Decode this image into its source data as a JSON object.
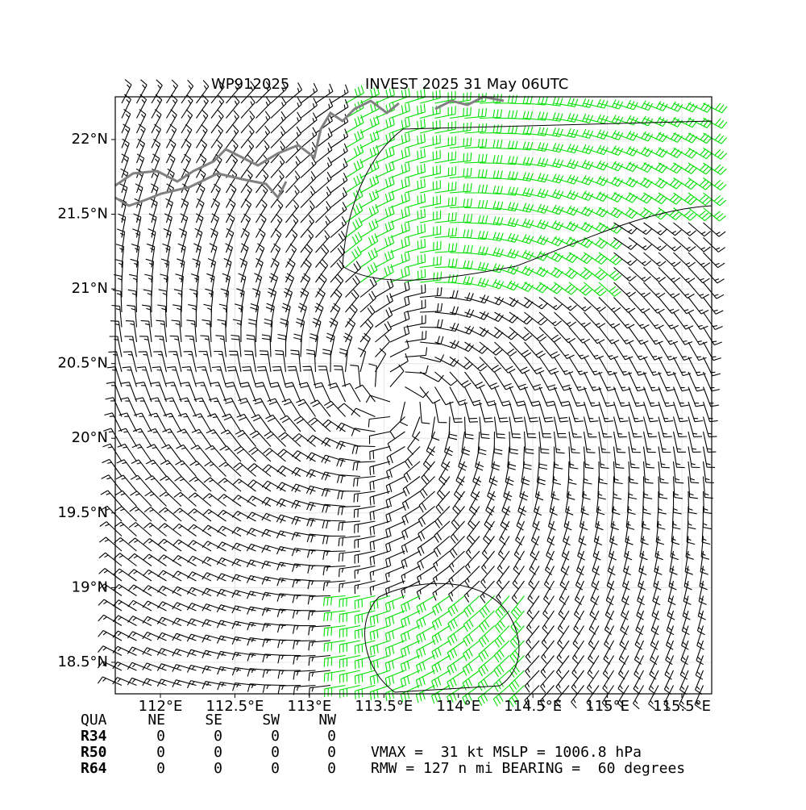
{
  "title_left": "WP912025",
  "title_right": "INVEST 2025 31 May 06UTC",
  "map": {
    "xlim": [
      111.697,
      115.7
    ],
    "ylim": [
      18.289,
      22.286
    ],
    "xticks": [
      {
        "value": 112,
        "label": "112°E"
      },
      {
        "value": 112.5,
        "label": "112.5°E"
      },
      {
        "value": 113,
        "label": "113°E"
      },
      {
        "value": 113.5,
        "label": "113.5°E"
      },
      {
        "value": 114,
        "label": "114°E"
      },
      {
        "value": 114.5,
        "label": "114.5°E"
      },
      {
        "value": 115,
        "label": "115°E"
      },
      {
        "value": 115.5,
        "label": "115.5°E"
      }
    ],
    "yticks": [
      {
        "value": 22,
        "label": "22°N"
      },
      {
        "value": 21.5,
        "label": "21.5°N"
      },
      {
        "value": 21,
        "label": "21°N"
      },
      {
        "value": 20.5,
        "label": "20.5°N"
      },
      {
        "value": 20,
        "label": "20°N"
      },
      {
        "value": 19.5,
        "label": "19.5°N"
      },
      {
        "value": 19,
        "label": "19°N"
      },
      {
        "value": 18.5,
        "label": "18.5°N"
      }
    ]
  },
  "quadrant_table": {
    "header": [
      "QUA",
      "NE",
      "SE",
      "SW",
      "NW"
    ],
    "rows": [
      [
        "R34",
        0,
        0,
        0,
        0
      ],
      [
        "R50",
        0,
        0,
        0,
        0
      ],
      [
        "R64",
        0,
        0,
        0,
        0
      ]
    ]
  },
  "info": [
    "VMAX =  31 kt MSLP = 1006.8 hPa",
    "RMW = 127 n mi BEARING =  60 degrees"
  ]
}
